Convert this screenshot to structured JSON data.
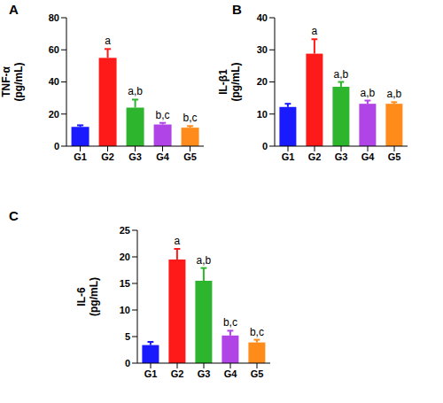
{
  "chart_data": [
    {
      "type": "bar",
      "title": "A",
      "y_label": "TNF-α (pg/mL)",
      "categories": [
        "G1",
        "G2",
        "G3",
        "G4",
        "G5"
      ],
      "values": [
        12,
        55,
        24,
        13.5,
        11.5
      ],
      "errors": [
        1,
        5.5,
        5,
        1,
        1
      ],
      "annotations": [
        null,
        "a",
        "a,b",
        "b,c",
        "b,c"
      ],
      "colors": [
        "#1a1aff",
        "#ff1a1a",
        "#2db52d",
        "#b044e6",
        "#ff8c1a"
      ],
      "ylim": [
        0,
        80
      ],
      "yticks": [
        0,
        20,
        40,
        60,
        80
      ]
    },
    {
      "type": "bar",
      "title": "B",
      "y_label": "IL-β1 (pg/mL)",
      "categories": [
        "G1",
        "G2",
        "G3",
        "G4",
        "G5"
      ],
      "values": [
        12.2,
        28.8,
        18.5,
        13.2,
        13.2
      ],
      "errors": [
        1,
        4.5,
        1.5,
        1,
        0.5
      ],
      "annotations": [
        null,
        "a",
        "a,b",
        "a,b",
        "a,b"
      ],
      "colors": [
        "#1a1aff",
        "#ff1a1a",
        "#2db52d",
        "#b044e6",
        "#ff8c1a"
      ],
      "ylim": [
        0,
        40
      ],
      "yticks": [
        0,
        10,
        20,
        30,
        40
      ]
    },
    {
      "type": "bar",
      "title": "C",
      "y_label": "IL-6 (pg/mL)",
      "categories": [
        "G1",
        "G2",
        "G3",
        "G4",
        "G5"
      ],
      "values": [
        3.4,
        19.5,
        15.5,
        5.2,
        3.9
      ],
      "errors": [
        0.6,
        2,
        2.4,
        0.9,
        0.5
      ],
      "annotations": [
        null,
        "a",
        "a,b",
        "b,c",
        "b,c"
      ],
      "colors": [
        "#1a1aff",
        "#ff1a1a",
        "#2db52d",
        "#b044e6",
        "#ff8c1a"
      ],
      "ylim": [
        0,
        25
      ],
      "yticks": [
        0,
        5,
        10,
        15,
        20,
        25
      ]
    }
  ]
}
